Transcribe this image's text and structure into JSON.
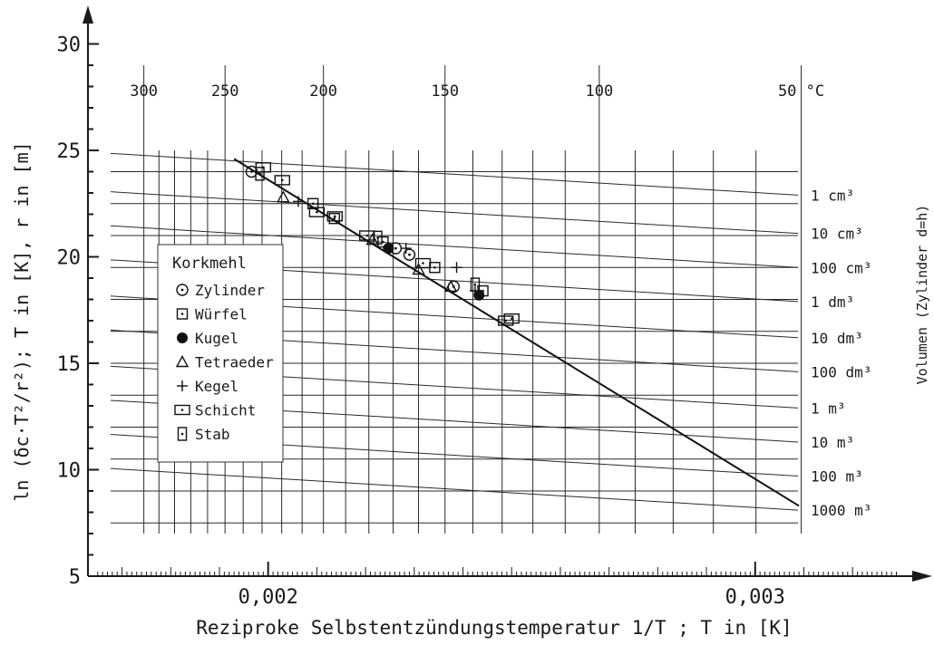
{
  "chart_data": {
    "type": "scatter",
    "xlabel": "Reziproke Selbstentzündungstemperatur 1/T ; T in [K]",
    "ylabel": "ln (δc·T²/r²); T in [K], r in [m]",
    "right_label": "Volumen (Zylinder d=h)",
    "xlim": [
      0.00163,
      0.00333
    ],
    "ylim": [
      5,
      31
    ],
    "x_ticks": [
      {
        "value": 0.002,
        "label": "0,002"
      },
      {
        "value": 0.003,
        "label": "0,003"
      }
    ],
    "y_ticks": [
      {
        "value": 5,
        "label": "5"
      },
      {
        "value": 10,
        "label": "10"
      },
      {
        "value": 15,
        "label": "15"
      },
      {
        "value": 20,
        "label": "20"
      },
      {
        "value": 25,
        "label": "25"
      },
      {
        "value": 30,
        "label": "30"
      }
    ],
    "top_axis": [
      {
        "celsius": 300,
        "label": "300"
      },
      {
        "celsius": 250,
        "label": "250"
      },
      {
        "celsius": 200,
        "label": "200"
      },
      {
        "celsius": 150,
        "label": "150"
      },
      {
        "celsius": 100,
        "label": "100"
      },
      {
        "celsius": 50,
        "label": "50 °C"
      }
    ],
    "volume_lines": [
      {
        "label": "1 cm³",
        "y_right": 22.9
      },
      {
        "label": "10 cm³",
        "y_right": 21.1
      },
      {
        "label": "100 cm³",
        "y_right": 19.5
      },
      {
        "label": "1 dm³",
        "y_right": 17.9
      },
      {
        "label": "10 dm³",
        "y_right": 16.2
      },
      {
        "label": "100 dm³",
        "y_right": 14.6
      },
      {
        "label": "1 m³",
        "y_right": 12.9
      },
      {
        "label": "10 m³",
        "y_right": 11.3
      },
      {
        "label": "100 m³",
        "y_right": 9.7
      },
      {
        "label": "1000 m³",
        "y_right": 8.1
      }
    ],
    "fit_line": {
      "x": [
        0.00193,
        0.00309
      ],
      "y": [
        24.6,
        8.3
      ]
    },
    "legend": {
      "title": "Korkmehl",
      "entries": [
        {
          "name": "Zylinder",
          "marker": "circle-dot"
        },
        {
          "name": "Würfel",
          "marker": "square-dot"
        },
        {
          "name": "Kugel",
          "marker": "filled-circle"
        },
        {
          "name": "Tetraeder",
          "marker": "triangle"
        },
        {
          "name": "Kegel",
          "marker": "plus"
        },
        {
          "name": "Schicht",
          "marker": "wide-rect-dot"
        },
        {
          "name": "Stab",
          "marker": "tall-rect-dot"
        }
      ]
    },
    "series": [
      {
        "name": "Zylinder",
        "marker": "circle-dot",
        "points": [
          {
            "x": 0.001966,
            "y": 24.0
          },
          {
            "x": 0.002262,
            "y": 20.4
          },
          {
            "x": 0.00229,
            "y": 20.1
          },
          {
            "x": 0.002381,
            "y": 18.6
          }
        ]
      },
      {
        "name": "Würfel",
        "marker": "square-dot",
        "points": [
          {
            "x": 0.002092,
            "y": 22.5
          },
          {
            "x": 0.002136,
            "y": 21.8
          },
          {
            "x": 0.002236,
            "y": 20.7
          },
          {
            "x": 0.002342,
            "y": 19.5
          },
          {
            "x": 0.002441,
            "y": 18.4
          }
        ]
      },
      {
        "name": "Kugel",
        "marker": "filled-circle",
        "points": [
          {
            "x": 0.002247,
            "y": 20.4
          },
          {
            "x": 0.002433,
            "y": 18.2
          }
        ]
      },
      {
        "name": "Tetraeder",
        "marker": "triangle",
        "points": [
          {
            "x": 0.002031,
            "y": 22.8
          },
          {
            "x": 0.002214,
            "y": 20.8
          },
          {
            "x": 0.002309,
            "y": 19.4
          },
          {
            "x": 0.002375,
            "y": 18.6
          }
        ]
      },
      {
        "name": "Kegel",
        "marker": "plus",
        "points": [
          {
            "x": 0.002062,
            "y": 22.6
          },
          {
            "x": 0.002283,
            "y": 20.4
          },
          {
            "x": 0.002387,
            "y": 19.5
          },
          {
            "x": 0.002425,
            "y": 18.4
          }
        ]
      },
      {
        "name": "Schicht",
        "marker": "wide-rect-dot",
        "points": [
          {
            "x": 0.00199,
            "y": 24.2
          },
          {
            "x": 0.002029,
            "y": 23.6
          },
          {
            "x": 0.0021,
            "y": 22.1
          },
          {
            "x": 0.002137,
            "y": 21.9
          },
          {
            "x": 0.002203,
            "y": 21.0
          },
          {
            "x": 0.002318,
            "y": 19.7
          },
          {
            "x": 0.002488,
            "y": 17.0
          },
          {
            "x": 0.0025,
            "y": 17.1
          }
        ]
      },
      {
        "name": "Stab",
        "marker": "tall-rect-dot",
        "points": [
          {
            "x": 0.001983,
            "y": 23.9
          },
          {
            "x": 0.002225,
            "y": 20.9
          },
          {
            "x": 0.002425,
            "y": 18.7
          }
        ]
      }
    ]
  }
}
